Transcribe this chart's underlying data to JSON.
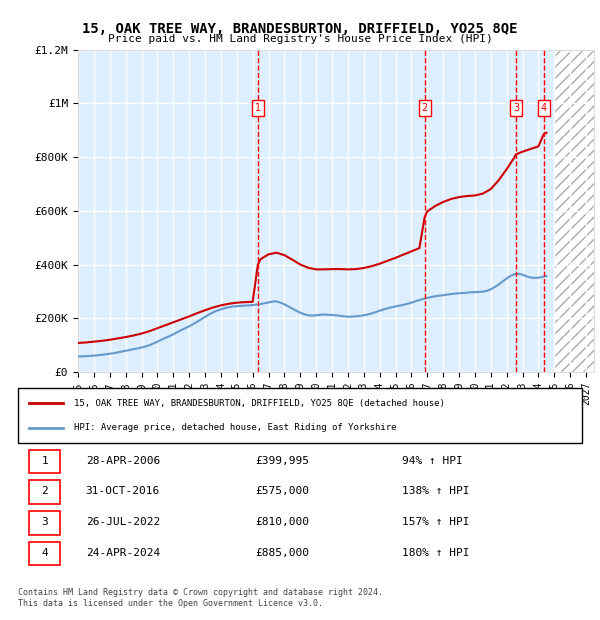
{
  "title": "15, OAK TREE WAY, BRANDESBURTON, DRIFFIELD, YO25 8QE",
  "subtitle": "Price paid vs. HM Land Registry's House Price Index (HPI)",
  "ylabel": "",
  "xlabel": "",
  "ylim": [
    0,
    1200000
  ],
  "yticks": [
    0,
    200000,
    400000,
    600000,
    800000,
    1000000,
    1200000
  ],
  "ytick_labels": [
    "£0",
    "£200K",
    "£400K",
    "£600K",
    "£800K",
    "£1M",
    "£1.2M"
  ],
  "x_start": 1995.0,
  "x_end": 2027.5,
  "future_start": 2025.0,
  "hpi_color": "#6699cc",
  "price_color": "#cc0000",
  "bg_color": "#ddeeff",
  "hpi_line": {
    "dates": [
      1995.0,
      1995.25,
      1995.5,
      1995.75,
      1996.0,
      1996.25,
      1996.5,
      1996.75,
      1997.0,
      1997.25,
      1997.5,
      1997.75,
      1998.0,
      1998.25,
      1998.5,
      1998.75,
      1999.0,
      1999.25,
      1999.5,
      1999.75,
      2000.0,
      2000.25,
      2000.5,
      2000.75,
      2001.0,
      2001.25,
      2001.5,
      2001.75,
      2002.0,
      2002.25,
      2002.5,
      2002.75,
      2003.0,
      2003.25,
      2003.5,
      2003.75,
      2004.0,
      2004.25,
      2004.5,
      2004.75,
      2005.0,
      2005.25,
      2005.5,
      2005.75,
      2006.0,
      2006.25,
      2006.5,
      2006.75,
      2007.0,
      2007.25,
      2007.5,
      2007.75,
      2008.0,
      2008.25,
      2008.5,
      2008.75,
      2009.0,
      2009.25,
      2009.5,
      2009.75,
      2010.0,
      2010.25,
      2010.5,
      2010.75,
      2011.0,
      2011.25,
      2011.5,
      2011.75,
      2012.0,
      2012.25,
      2012.5,
      2012.75,
      2013.0,
      2013.25,
      2013.5,
      2013.75,
      2014.0,
      2014.25,
      2014.5,
      2014.75,
      2015.0,
      2015.25,
      2015.5,
      2015.75,
      2016.0,
      2016.25,
      2016.5,
      2016.75,
      2017.0,
      2017.25,
      2017.5,
      2017.75,
      2018.0,
      2018.25,
      2018.5,
      2018.75,
      2019.0,
      2019.25,
      2019.5,
      2019.75,
      2020.0,
      2020.25,
      2020.5,
      2020.75,
      2021.0,
      2021.25,
      2021.5,
      2021.75,
      2022.0,
      2022.25,
      2022.5,
      2022.75,
      2023.0,
      2023.25,
      2023.5,
      2023.75,
      2024.0,
      2024.25,
      2024.5
    ],
    "values": [
      58000,
      58500,
      59000,
      60000,
      61000,
      62500,
      64000,
      66000,
      68000,
      70000,
      73000,
      76000,
      79000,
      82000,
      85000,
      88000,
      91000,
      95000,
      100000,
      106000,
      113000,
      120000,
      127000,
      133000,
      140000,
      148000,
      156000,
      163000,
      170000,
      178000,
      187000,
      196000,
      205000,
      214000,
      222000,
      228000,
      233000,
      238000,
      241000,
      244000,
      245000,
      246000,
      247000,
      248000,
      249000,
      251000,
      253000,
      256000,
      259000,
      262000,
      263000,
      258000,
      252000,
      244000,
      236000,
      228000,
      221000,
      215000,
      211000,
      210000,
      211000,
      213000,
      214000,
      213000,
      212000,
      211000,
      209000,
      207000,
      206000,
      206000,
      207000,
      209000,
      211000,
      214000,
      218000,
      223000,
      228000,
      233000,
      237000,
      241000,
      244000,
      247000,
      250000,
      254000,
      258000,
      263000,
      268000,
      272000,
      276000,
      279000,
      282000,
      284000,
      286000,
      288000,
      290000,
      292000,
      293000,
      294000,
      295000,
      297000,
      297000,
      298000,
      299000,
      302000,
      308000,
      316000,
      326000,
      337000,
      348000,
      358000,
      364000,
      366000,
      362000,
      356000,
      352000,
      350000,
      351000,
      354000,
      357000
    ]
  },
  "price_line": {
    "dates": [
      1995.0,
      1995.5,
      1996.0,
      1996.5,
      1997.0,
      1997.5,
      1998.0,
      1998.5,
      1999.0,
      1999.5,
      2000.0,
      2000.5,
      2001.0,
      2001.5,
      2002.0,
      2002.5,
      2003.0,
      2003.5,
      2004.0,
      2004.5,
      2005.0,
      2005.5,
      2006.0,
      2006.33,
      2006.5,
      2007.0,
      2007.5,
      2008.0,
      2008.5,
      2009.0,
      2009.5,
      2010.0,
      2010.5,
      2011.0,
      2011.5,
      2012.0,
      2012.5,
      2013.0,
      2013.5,
      2014.0,
      2014.5,
      2015.0,
      2015.5,
      2016.0,
      2016.5,
      2016.83,
      2017.0,
      2017.5,
      2018.0,
      2018.5,
      2019.0,
      2019.5,
      2020.0,
      2020.5,
      2021.0,
      2021.5,
      2022.0,
      2022.5,
      2022.58,
      2023.0,
      2023.5,
      2024.0,
      2024.33,
      2024.5
    ],
    "values": [
      108000,
      110000,
      113000,
      116000,
      120000,
      125000,
      130000,
      136000,
      143000,
      152000,
      163000,
      174000,
      185000,
      196000,
      207000,
      219000,
      230000,
      240000,
      248000,
      254000,
      258000,
      260000,
      261000,
      399995,
      420000,
      438000,
      444000,
      435000,
      418000,
      400000,
      388000,
      382000,
      382000,
      383000,
      383000,
      382000,
      383000,
      387000,
      394000,
      403000,
      414000,
      425000,
      437000,
      449000,
      461000,
      575000,
      598000,
      618000,
      633000,
      644000,
      651000,
      655000,
      657000,
      664000,
      681000,
      714000,
      755000,
      800000,
      810000,
      820000,
      830000,
      840000,
      885000,
      890000
    ]
  },
  "transactions": [
    {
      "date": 2006.33,
      "price": 399995,
      "label": "1",
      "display_date": "28-APR-2006",
      "display_price": "£399,995",
      "display_pct": "94% ↑ HPI"
    },
    {
      "date": 2016.83,
      "price": 575000,
      "label": "2",
      "display_date": "31-OCT-2016",
      "display_price": "£575,000",
      "display_pct": "138% ↑ HPI"
    },
    {
      "date": 2022.58,
      "price": 810000,
      "label": "3",
      "display_date": "26-JUL-2022",
      "display_price": "£810,000",
      "display_pct": "157% ↑ HPI"
    },
    {
      "date": 2024.33,
      "price": 885000,
      "label": "4",
      "display_date": "24-APR-2024",
      "display_price": "£885,000",
      "display_pct": "180% ↑ HPI"
    }
  ],
  "legend_property": "15, OAK TREE WAY, BRANDESBURTON, DRIFFIELD, YO25 8QE (detached house)",
  "legend_hpi": "HPI: Average price, detached house, East Riding of Yorkshire",
  "footer": "Contains HM Land Registry data © Crown copyright and database right 2024.\nThis data is licensed under the Open Government Licence v3.0.",
  "xticks": [
    1995,
    1996,
    1997,
    1998,
    1999,
    2000,
    2001,
    2002,
    2003,
    2004,
    2005,
    2006,
    2007,
    2008,
    2009,
    2010,
    2011,
    2012,
    2013,
    2014,
    2015,
    2016,
    2017,
    2018,
    2019,
    2020,
    2021,
    2022,
    2023,
    2024,
    2025,
    2026,
    2027
  ]
}
